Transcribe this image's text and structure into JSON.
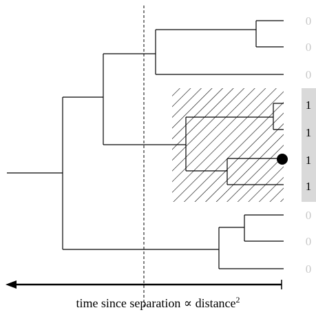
{
  "leaf_labels": [
    "0",
    "0",
    "0",
    "1",
    "1",
    "1",
    "1",
    "0",
    "0",
    "0"
  ],
  "axis": {
    "caption": "time since separation ∝ distance",
    "caption_exponent": "2"
  },
  "colors": {
    "active_label": "#000000",
    "inactive_label": "#c8c8c8",
    "highlight_band": "#d9d9d9",
    "lines": "#000000"
  }
}
